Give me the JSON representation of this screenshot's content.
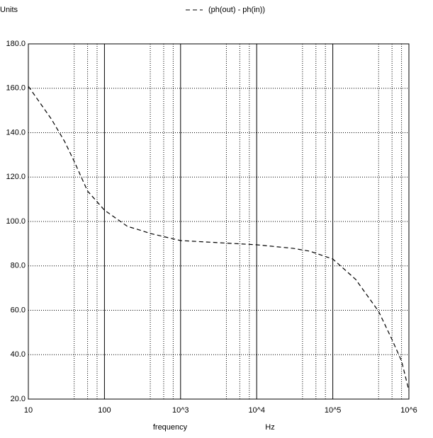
{
  "chart_data": {
    "type": "line",
    "y_label": "Units",
    "x_label": "frequency",
    "x_unit": "Hz",
    "x": [
      10,
      20,
      30,
      40,
      60,
      100,
      200,
      300,
      400,
      1000,
      10000,
      30000,
      50000,
      100000,
      200000,
      400000,
      600000,
      800000,
      1000000
    ],
    "series": [
      {
        "name": "(ph(out) - ph(in))",
        "color": "#000000",
        "values": [
          160.9,
          146.2,
          136,
          127.1,
          113.7,
          105.1,
          97.8,
          96,
          94.6,
          91.4,
          89.5,
          87.9,
          86.6,
          83.1,
          73.9,
          59.5,
          46.8,
          37.2,
          23.8
        ]
      }
    ],
    "xlog": true,
    "xlim": [
      10,
      1000000
    ],
    "xticks": [
      10,
      100,
      {
        "value": 1000,
        "label": "10^3"
      },
      {
        "value": 10000,
        "label": "10^4"
      },
      {
        "value": 100000,
        "label": "10^5"
      },
      {
        "value": 1000000,
        "label": "10^6"
      }
    ],
    "x_minor_gridlines": [
      40,
      60,
      80,
      400,
      600,
      800,
      4000,
      6000,
      8000,
      40000,
      60000,
      80000,
      400000,
      600000,
      800000
    ],
    "ylim": [
      20,
      180
    ],
    "yticks": [
      {
        "value": 20,
        "label": "20.0"
      },
      {
        "value": 40,
        "label": "40.0"
      },
      {
        "value": 60,
        "label": "60.0"
      },
      {
        "value": 80,
        "label": "80.0"
      },
      {
        "value": 100,
        "label": "100.0"
      },
      {
        "value": 120,
        "label": "120.0"
      },
      {
        "value": 140,
        "label": "140.0"
      },
      {
        "value": 160,
        "label": "160.0"
      },
      {
        "value": 180,
        "label": "180.0"
      }
    ],
    "grid": true
  }
}
